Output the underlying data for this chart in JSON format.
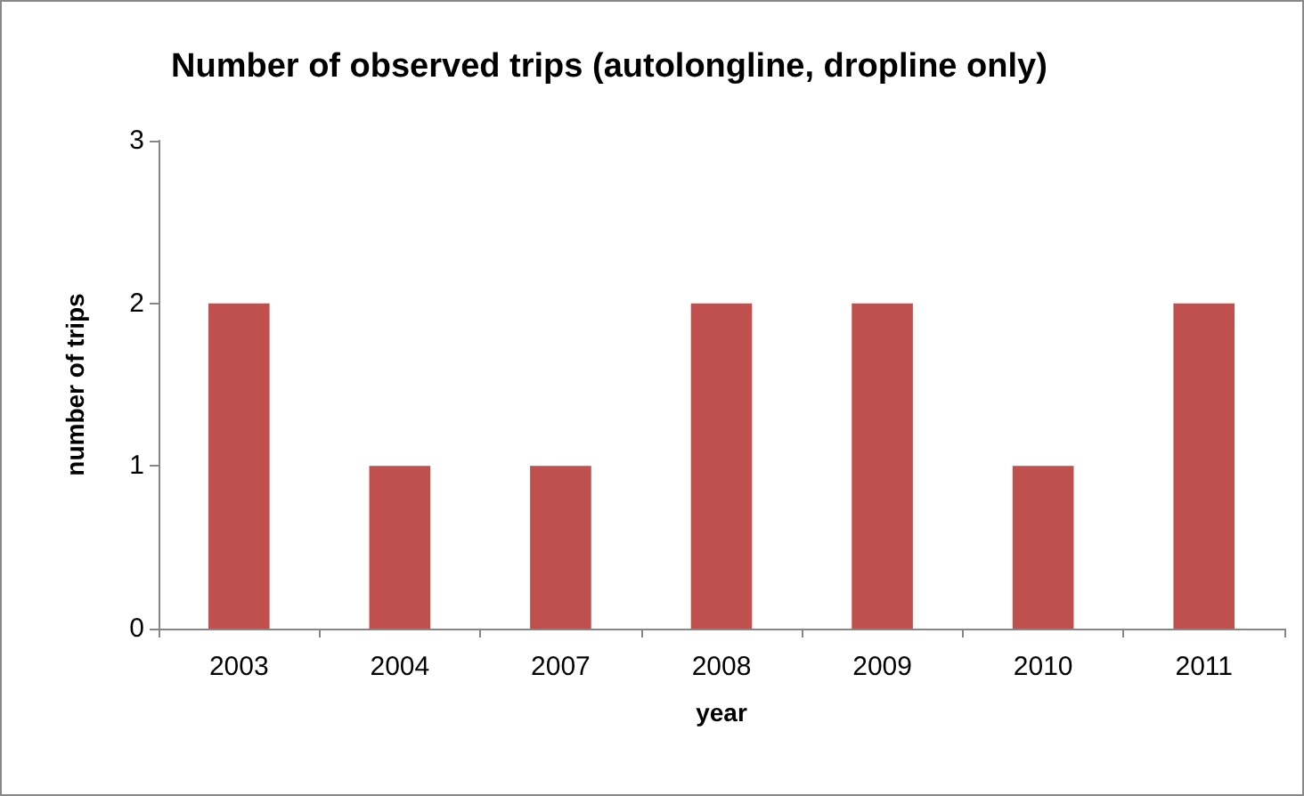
{
  "chart_data": {
    "type": "bar",
    "title": "Number of observed trips (autolongline, dropline only)",
    "xlabel": "year",
    "ylabel": "number of trips",
    "categories": [
      "2003",
      "2004",
      "2007",
      "2008",
      "2009",
      "2010",
      "2011"
    ],
    "values": [
      2,
      1,
      1,
      2,
      2,
      1,
      2
    ],
    "color": "#c0504d",
    "ylim": [
      0,
      3
    ],
    "yticks": [
      0,
      1,
      2,
      3
    ],
    "grid": false
  }
}
